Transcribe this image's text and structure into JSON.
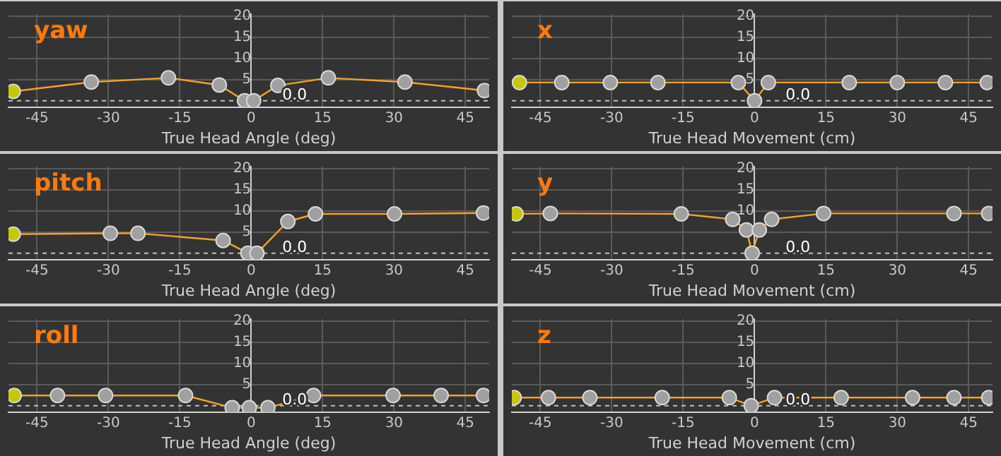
{
  "chart_data": [
    {
      "type": "line",
      "title": "yaw",
      "xlabel": "True Head Angle (deg)",
      "x": [
        -50,
        -33.6,
        -17.4,
        -6.7,
        -1.4,
        0.5,
        5.6,
        16.2,
        32.3,
        49
      ],
      "series": [
        {
          "color": "#f0a030",
          "colors": [
            "#c8c800",
            "#a0a0a0",
            "#a0a0a0",
            "#a0a0a0",
            "#a0a0a0",
            "#a0a0a0",
            "#a0a0a0",
            "#a0a0a0",
            "#a0a0a0",
            "#a0a0a0"
          ],
          "values": [
            2.2,
            4.4,
            5.4,
            3.7,
            0,
            0,
            3.6,
            5.4,
            4.4,
            2.4
          ]
        }
      ],
      "xlim": [
        -51,
        50
      ],
      "ylim": [
        -1.5,
        20.5
      ],
      "xticks": [
        -45,
        -30,
        -15,
        0,
        15,
        30,
        45
      ],
      "yticks": [
        5,
        10,
        15,
        20
      ],
      "grid": true,
      "marker": "circle",
      "ref_lines": [
        {
          "axis": "y",
          "value": 0,
          "label": "0.0",
          "color": "#c0c0c0",
          "line_style": "dashed"
        }
      ]
    },
    {
      "type": "line",
      "title": "x",
      "xlabel": "True Head Movement (cm)",
      "x": [
        -49.4,
        -40.5,
        -30.3,
        -20.3,
        -3.4,
        0,
        2.9,
        19.9,
        30,
        40.1,
        48.9
      ],
      "series": [
        {
          "color": "#f0a030",
          "colors": [
            "#c8c800",
            "#a0a0a0",
            "#a0a0a0",
            "#a0a0a0",
            "#a0a0a0",
            "#a0a0a0",
            "#a0a0a0",
            "#a0a0a0",
            "#a0a0a0",
            "#a0a0a0",
            "#a0a0a0"
          ],
          "values": [
            4.3,
            4.3,
            4.3,
            4.3,
            4.3,
            0,
            4.3,
            4.3,
            4.3,
            4.3,
            4.3
          ]
        }
      ],
      "xlim": [
        -51,
        50
      ],
      "ylim": [
        -1.5,
        20.5
      ],
      "xticks": [
        -45,
        -30,
        -15,
        0,
        15,
        30,
        45
      ],
      "yticks": [
        5,
        10,
        15,
        20
      ],
      "grid": true,
      "marker": "circle",
      "ref_lines": [
        {
          "axis": "y",
          "value": 0,
          "label": "0.0",
          "color": "#c0c0c0",
          "line_style": "dashed"
        }
      ]
    },
    {
      "type": "line",
      "title": "pitch",
      "xlabel": "True Head Angle (deg)",
      "x": [
        -50,
        -29.6,
        -23.8,
        -5.9,
        -0.7,
        1.2,
        7.7,
        13.5,
        30.1,
        48.8
      ],
      "series": [
        {
          "color": "#f0a030",
          "colors": [
            "#c8c800",
            "#a0a0a0",
            "#a0a0a0",
            "#a0a0a0",
            "#a0a0a0",
            "#a0a0a0",
            "#a0a0a0",
            "#a0a0a0",
            "#a0a0a0",
            "#a0a0a0"
          ],
          "values": [
            4.5,
            4.7,
            4.7,
            3,
            0,
            0,
            7.5,
            9.3,
            9.3,
            9.5
          ]
        }
      ],
      "xlim": [
        -51,
        50
      ],
      "ylim": [
        -1.5,
        20.5
      ],
      "xticks": [
        -45,
        -30,
        -15,
        0,
        15,
        30,
        45
      ],
      "yticks": [
        5,
        10,
        15,
        20
      ],
      "grid": true,
      "marker": "circle",
      "ref_lines": [
        {
          "axis": "y",
          "value": 0,
          "label": "0.0",
          "color": "#c0c0c0",
          "line_style": "dashed"
        }
      ]
    },
    {
      "type": "line",
      "title": "y",
      "xlabel": "True Head Movement (cm)",
      "x": [
        -50.1,
        -42.9,
        -15.4,
        -4.6,
        -1.7,
        -0.5,
        1,
        3.6,
        14.5,
        41.9,
        49.2
      ],
      "series": [
        {
          "color": "#f0a030",
          "colors": [
            "#c8c800",
            "#a0a0a0",
            "#a0a0a0",
            "#a0a0a0",
            "#a0a0a0",
            "#a0a0a0",
            "#a0a0a0",
            "#a0a0a0",
            "#a0a0a0",
            "#a0a0a0",
            "#a0a0a0"
          ],
          "values": [
            9.3,
            9.4,
            9.3,
            8,
            5.5,
            0,
            5.5,
            8,
            9.4,
            9.4,
            9.4
          ]
        }
      ],
      "xlim": [
        -51,
        50
      ],
      "ylim": [
        -1.5,
        20.5
      ],
      "xticks": [
        -45,
        -30,
        -15,
        0,
        15,
        30,
        45
      ],
      "yticks": [
        5,
        10,
        15,
        20
      ],
      "grid": true,
      "marker": "circle",
      "ref_lines": [
        {
          "axis": "y",
          "value": 0,
          "label": "0.0",
          "color": "#c0c0c0",
          "line_style": "dashed"
        }
      ]
    },
    {
      "type": "line",
      "title": "roll",
      "xlabel": "True Head Angle (deg)",
      "x": [
        -49.8,
        -40.7,
        -30.6,
        -13.8,
        -4,
        -0.4,
        3.5,
        13.1,
        29.8,
        39.9,
        48.8
      ],
      "series": [
        {
          "color": "#f0a030",
          "colors": [
            "#c8c800",
            "#a0a0a0",
            "#a0a0a0",
            "#a0a0a0",
            "#a0a0a0",
            "#a0a0a0",
            "#a0a0a0",
            "#a0a0a0",
            "#a0a0a0",
            "#a0a0a0",
            "#a0a0a0"
          ],
          "values": [
            2.4,
            2.4,
            2.4,
            2.4,
            -0.5,
            -0.5,
            -0.5,
            2.4,
            2.4,
            2.4,
            2.4
          ]
        }
      ],
      "xlim": [
        -51,
        50
      ],
      "ylim": [
        -1.5,
        20.5
      ],
      "xticks": [
        -45,
        -30,
        -15,
        0,
        15,
        30,
        45
      ],
      "yticks": [
        5,
        10,
        15,
        20
      ],
      "grid": true,
      "marker": "circle",
      "ref_lines": [
        {
          "axis": "y",
          "value": 0,
          "label": "0.0",
          "color": "#c0c0c0",
          "line_style": "dashed"
        }
      ]
    },
    {
      "type": "line",
      "title": "z",
      "xlabel": "True Head Movement (cm)",
      "x": [
        -50.5,
        -43.3,
        -34.6,
        -19.4,
        -5.3,
        -0.7,
        4.2,
        18.2,
        33.2,
        41.9,
        49.2
      ],
      "series": [
        {
          "color": "#f0a030",
          "colors": [
            "#c8c800",
            "#a0a0a0",
            "#a0a0a0",
            "#a0a0a0",
            "#a0a0a0",
            "#a0a0a0",
            "#a0a0a0",
            "#a0a0a0",
            "#a0a0a0",
            "#a0a0a0",
            "#a0a0a0"
          ],
          "values": [
            1.9,
            1.9,
            1.9,
            1.9,
            1.9,
            0,
            1.9,
            1.9,
            1.9,
            1.9,
            1.9
          ]
        }
      ],
      "xlim": [
        -51,
        50
      ],
      "ylim": [
        -1.5,
        20.5
      ],
      "xticks": [
        -45,
        -30,
        -15,
        0,
        15,
        30,
        45
      ],
      "yticks": [
        5,
        10,
        15,
        20
      ],
      "grid": true,
      "marker": "circle",
      "ref_lines": [
        {
          "axis": "y",
          "value": 0,
          "label": "0.0",
          "color": "#c0c0c0",
          "line_style": "dashed"
        }
      ]
    }
  ]
}
